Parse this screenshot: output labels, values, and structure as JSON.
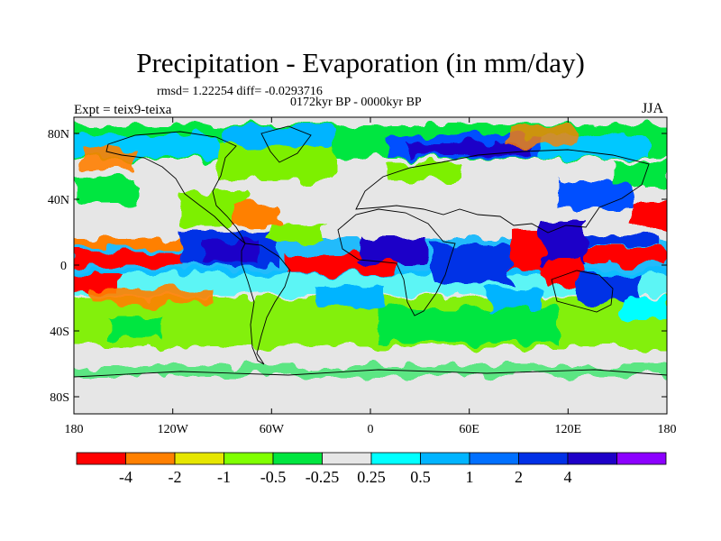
{
  "title": "Precipitation - Evaporation (in mm/day)",
  "stats_line": "rmsd= 1.22254 diff= -0.0293716",
  "period": "0172kyr BP - 0000kyr BP",
  "experiment": "Expt = teix9-teixa",
  "season": "JJA",
  "map": {
    "lat_ticks": [
      "80N",
      "40N",
      "0",
      "40S",
      "80S"
    ],
    "lon_ticks": [
      "180",
      "120W",
      "60W",
      "0",
      "60E",
      "120E",
      "180"
    ]
  },
  "colorbar": {
    "colors": [
      "#ff0000",
      "#ff8000",
      "#e6e600",
      "#80ff00",
      "#00e640",
      "#e6e6e6",
      "#00ffff",
      "#00b4ff",
      "#0070ff",
      "#0030e6",
      "#1e00c8",
      "#8c00ff"
    ],
    "labels": [
      "-4",
      "-2",
      "-1",
      "-0.5",
      "-0.25",
      "0.25",
      "0.5",
      "1",
      "2",
      "4"
    ]
  }
}
